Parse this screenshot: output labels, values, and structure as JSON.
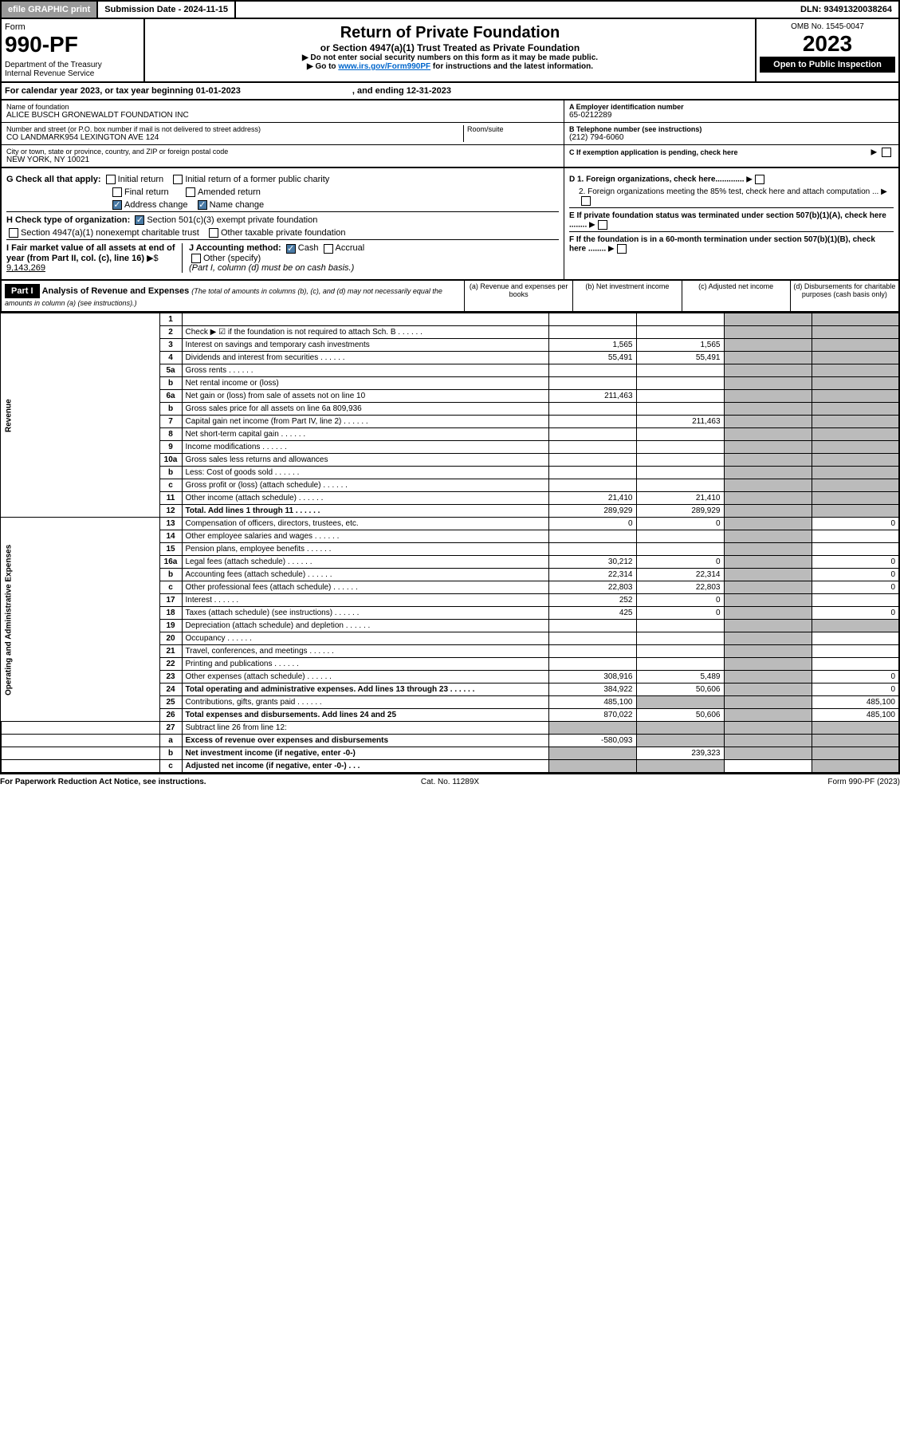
{
  "topbar": {
    "efile": "efile GRAPHIC print",
    "submission": "Submission Date - 2024-11-15",
    "dln": "DLN: 93491320038264"
  },
  "header": {
    "form": "Form",
    "formno": "990-PF",
    "dept": "Department of the Treasury\nInternal Revenue Service",
    "title": "Return of Private Foundation",
    "subtitle": "or Section 4947(a)(1) Trust Treated as Private Foundation",
    "instr1": "▶ Do not enter social security numbers on this form as it may be made public.",
    "instr2a": "▶ Go to ",
    "instr2link": "www.irs.gov/Form990PF",
    "instr2b": " for instructions and the latest information.",
    "omb": "OMB No. 1545-0047",
    "year": "2023",
    "inspect": "Open to Public Inspection"
  },
  "cal": {
    "a": "For calendar year 2023, or tax year beginning 01-01-2023",
    "b": ", and ending 12-31-2023"
  },
  "id": {
    "name_lbl": "Name of foundation",
    "name": "ALICE BUSCH GRONEWALDT FOUNDATION INC",
    "addr_lbl": "Number and street (or P.O. box number if mail is not delivered to street address)",
    "addr": "CO LANDMARK954 LEXINGTON AVE 124",
    "room_lbl": "Room/suite",
    "city_lbl": "City or town, state or province, country, and ZIP or foreign postal code",
    "city": "NEW YORK, NY  10021",
    "ein_lbl": "A Employer identification number",
    "ein": "65-0212289",
    "tel_lbl": "B Telephone number (see instructions)",
    "tel": "(212) 794-6060",
    "c": "C If exemption application is pending, check here",
    "d1": "D 1. Foreign organizations, check here.............",
    "d2": "2. Foreign organizations meeting the 85% test, check here and attach computation ...",
    "e": "E If private foundation status was terminated under section 507(b)(1)(A), check here ........",
    "f": "F If the foundation is in a 60-month termination under section 507(b)(1)(B), check here ........"
  },
  "g": {
    "lbl": "G Check all that apply:",
    "initial": "Initial return",
    "final": "Final return",
    "addrchg": "Address change",
    "initpub": "Initial return of a former public charity",
    "amend": "Amended return",
    "namechg": "Name change"
  },
  "h": {
    "lbl": "H Check type of organization:",
    "s501": "Section 501(c)(3) exempt private foundation",
    "s4947": "Section 4947(a)(1) nonexempt charitable trust",
    "other": "Other taxable private foundation"
  },
  "i": {
    "lbl": "I Fair market value of all assets at end of year (from Part II, col. (c), line 16)",
    "arrow": "▶$",
    "val": "9,143,269"
  },
  "j": {
    "lbl": "J Accounting method:",
    "cash": "Cash",
    "accr": "Accrual",
    "other": "Other (specify)",
    "note": "(Part I, column (d) must be on cash basis.)"
  },
  "part1": {
    "hdr": "Part I",
    "title": "Analysis of Revenue and Expenses",
    "sub": "(The total of amounts in columns (b), (c), and (d) may not necessarily equal the amounts in column (a) (see instructions).)",
    "cols": {
      "a": "(a) Revenue and expenses per books",
      "b": "(b) Net investment income",
      "c": "(c) Adjusted net income",
      "d": "(d) Disbursements for charitable purposes (cash basis only)"
    }
  },
  "sections": {
    "rev": "Revenue",
    "exp": "Operating and Administrative Expenses"
  },
  "rows": [
    {
      "n": "1",
      "d": "",
      "a": "",
      "b": "",
      "c": ""
    },
    {
      "n": "2",
      "d": "Check ▶ ☑ if the foundation is not required to attach Sch. B",
      "dots": true
    },
    {
      "n": "3",
      "d": "Interest on savings and temporary cash investments",
      "a": "1,565",
      "b": "1,565"
    },
    {
      "n": "4",
      "d": "Dividends and interest from securities",
      "a": "55,491",
      "b": "55,491",
      "dots": true
    },
    {
      "n": "5a",
      "d": "Gross rents",
      "dots": true
    },
    {
      "n": "b",
      "d": "Net rental income or (loss)",
      "inline": true
    },
    {
      "n": "6a",
      "d": "Net gain or (loss) from sale of assets not on line 10",
      "a": "211,463"
    },
    {
      "n": "b",
      "d": "Gross sales price for all assets on line 6a",
      "inline_val": "809,936"
    },
    {
      "n": "7",
      "d": "Capital gain net income (from Part IV, line 2)",
      "b": "211,463",
      "dots": true
    },
    {
      "n": "8",
      "d": "Net short-term capital gain",
      "dots": true
    },
    {
      "n": "9",
      "d": "Income modifications",
      "dots": true
    },
    {
      "n": "10a",
      "d": "Gross sales less returns and allowances",
      "inline": true
    },
    {
      "n": "b",
      "d": "Less: Cost of goods sold",
      "inline": true,
      "dots": true
    },
    {
      "n": "c",
      "d": "Gross profit or (loss) (attach schedule)",
      "dots": true
    },
    {
      "n": "11",
      "d": "Other income (attach schedule)",
      "a": "21,410",
      "b": "21,410",
      "dots": true
    },
    {
      "n": "12",
      "d": "Total. Add lines 1 through 11",
      "a": "289,929",
      "b": "289,929",
      "bold": true,
      "dots": true
    }
  ],
  "exprows": [
    {
      "n": "13",
      "d": "Compensation of officers, directors, trustees, etc.",
      "a": "0",
      "b": "0",
      "dd": "0"
    },
    {
      "n": "14",
      "d": "Other employee salaries and wages",
      "dots": true
    },
    {
      "n": "15",
      "d": "Pension plans, employee benefits",
      "dots": true
    },
    {
      "n": "16a",
      "d": "Legal fees (attach schedule)",
      "a": "30,212",
      "b": "0",
      "dd": "0",
      "dots": true
    },
    {
      "n": "b",
      "d": "Accounting fees (attach schedule)",
      "a": "22,314",
      "b": "22,314",
      "dd": "0",
      "dots": true
    },
    {
      "n": "c",
      "d": "Other professional fees (attach schedule)",
      "a": "22,803",
      "b": "22,803",
      "dd": "0",
      "dots": true
    },
    {
      "n": "17",
      "d": "Interest",
      "a": "252",
      "b": "0",
      "dots": true
    },
    {
      "n": "18",
      "d": "Taxes (attach schedule) (see instructions)",
      "a": "425",
      "b": "0",
      "dd": "0",
      "dots": true
    },
    {
      "n": "19",
      "d": "Depreciation (attach schedule) and depletion",
      "dots": true
    },
    {
      "n": "20",
      "d": "Occupancy",
      "dots": true
    },
    {
      "n": "21",
      "d": "Travel, conferences, and meetings",
      "dots": true
    },
    {
      "n": "22",
      "d": "Printing and publications",
      "dots": true
    },
    {
      "n": "23",
      "d": "Other expenses (attach schedule)",
      "a": "308,916",
      "b": "5,489",
      "dd": "0",
      "dots": true
    },
    {
      "n": "24",
      "d": "Total operating and administrative expenses. Add lines 13 through 23",
      "a": "384,922",
      "b": "50,606",
      "dd": "0",
      "bold": true,
      "dots": true
    },
    {
      "n": "25",
      "d": "Contributions, gifts, grants paid",
      "a": "485,100",
      "dd": "485,100",
      "dots": true
    },
    {
      "n": "26",
      "d": "Total expenses and disbursements. Add lines 24 and 25",
      "a": "870,022",
      "b": "50,606",
      "dd": "485,100",
      "bold": true
    }
  ],
  "bottomrows": [
    {
      "n": "27",
      "d": "Subtract line 26 from line 12:"
    },
    {
      "n": "a",
      "d": "Excess of revenue over expenses and disbursements",
      "a": "-580,093",
      "bold": true
    },
    {
      "n": "b",
      "d": "Net investment income (if negative, enter -0-)",
      "b": "239,323",
      "bold": true
    },
    {
      "n": "c",
      "d": "Adjusted net income (if negative, enter -0-)",
      "bold": true,
      "dots": true
    }
  ],
  "footer": {
    "a": "For Paperwork Reduction Act Notice, see instructions.",
    "b": "Cat. No. 11289X",
    "c": "Form 990-PF (2023)"
  }
}
